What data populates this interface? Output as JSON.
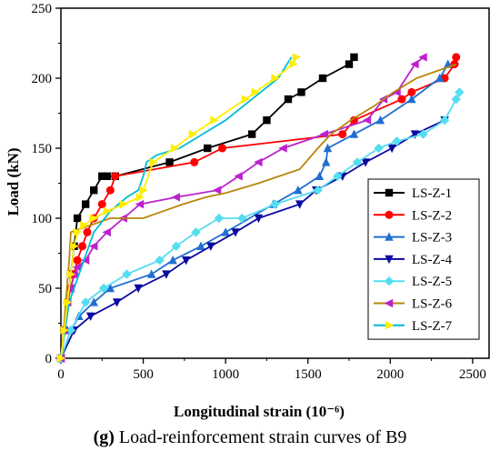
{
  "caption": {
    "prefix": "(g)",
    "text": "Load-reinforcement strain curves of B9"
  },
  "chart_data": {
    "type": "line",
    "xlabel": "Longitudinal strain (10⁻⁶)",
    "ylabel": "Load (kN)",
    "xlim": [
      0,
      2600
    ],
    "ylim": [
      0,
      250
    ],
    "xticks": [
      0,
      500,
      1000,
      1500,
      2000,
      2500
    ],
    "yticks": [
      0,
      50,
      100,
      150,
      200,
      250
    ],
    "grid": false,
    "legend_position": "right",
    "series": [
      {
        "name": "LS-Z-1",
        "color": "#000000",
        "marker": "square",
        "x": [
          0,
          20,
          40,
          60,
          80,
          100,
          150,
          200,
          250,
          280,
          330,
          660,
          890,
          1160,
          1250,
          1380,
          1460,
          1590,
          1750,
          1780
        ],
        "y": [
          0,
          20,
          40,
          60,
          80,
          100,
          110,
          120,
          130,
          130,
          130,
          140,
          150,
          160,
          170,
          185,
          190,
          200,
          210,
          215
        ]
      },
      {
        "name": "LS-Z-2",
        "color": "#ff0000",
        "marker": "circle",
        "x": [
          0,
          20,
          40,
          60,
          80,
          100,
          130,
          160,
          200,
          250,
          300,
          330,
          810,
          980,
          1710,
          1780,
          2070,
          2130,
          2330,
          2390,
          2400
        ],
        "y": [
          0,
          20,
          40,
          50,
          60,
          70,
          80,
          90,
          100,
          110,
          120,
          130,
          140,
          150,
          160,
          170,
          185,
          190,
          200,
          210,
          215
        ]
      },
      {
        "name": "LS-Z-3",
        "color": "#1f6fd0",
        "marker": "triangle-up",
        "x": [
          0,
          60,
          110,
          200,
          300,
          550,
          680,
          850,
          1000,
          1290,
          1440,
          1570,
          1610,
          1620,
          1780,
          1940,
          2130,
          2300,
          2350
        ],
        "y": [
          0,
          20,
          30,
          40,
          50,
          60,
          70,
          80,
          90,
          110,
          120,
          130,
          140,
          150,
          160,
          170,
          185,
          200,
          210
        ]
      },
      {
        "name": "LS-Z-4",
        "color": "#0a0aa0",
        "marker": "triangle-down",
        "x": [
          0,
          80,
          180,
          340,
          470,
          640,
          760,
          910,
          1060,
          1200,
          1450,
          1550,
          1710,
          1850,
          2010,
          2150,
          2330
        ],
        "y": [
          0,
          20,
          30,
          40,
          50,
          60,
          70,
          80,
          90,
          100,
          110,
          120,
          130,
          140,
          150,
          160,
          170
        ]
      },
      {
        "name": "LS-Z-5",
        "color": "#55ddf0",
        "marker": "diamond",
        "x": [
          0,
          60,
          150,
          260,
          400,
          600,
          700,
          820,
          960,
          1100,
          1300,
          1560,
          1680,
          1800,
          1930,
          2040,
          2200,
          2330,
          2400,
          2420
        ],
        "y": [
          0,
          20,
          40,
          50,
          60,
          70,
          80,
          90,
          100,
          100,
          110,
          120,
          130,
          140,
          150,
          155,
          160,
          170,
          185,
          190
        ]
      },
      {
        "name": "LS-Z-6",
        "color": "#bb22cc",
        "marker": "triangle-left",
        "x": [
          0,
          20,
          40,
          60,
          80,
          100,
          150,
          200,
          280,
          380,
          480,
          700,
          950,
          1080,
          1200,
          1350,
          1600,
          1860,
          1960,
          2040,
          2150,
          2200
        ],
        "y": [
          0,
          20,
          40,
          50,
          60,
          65,
          70,
          80,
          90,
          100,
          110,
          115,
          120,
          130,
          140,
          150,
          160,
          170,
          185,
          190,
          210,
          215
        ]
      },
      {
        "name": "LS-Z-7",
        "color": "#b8860b",
        "marker": "none",
        "x": [
          0,
          10,
          20,
          30,
          40,
          50,
          60,
          300,
          500,
          620,
          740,
          880,
          1000,
          1200,
          1450,
          1560,
          1640,
          1760,
          1900,
          2020,
          2160,
          2400
        ],
        "y": [
          0,
          10,
          25,
          40,
          55,
          70,
          90,
          100,
          100,
          105,
          110,
          115,
          118,
          125,
          135,
          150,
          160,
          170,
          180,
          190,
          200,
          210
        ]
      },
      {
        "name": "",
        "color": "#00bcd4",
        "marker": "none",
        "x": [
          0,
          50,
          110,
          200,
          300,
          400,
          470,
          500,
          520,
          580,
          720,
          860,
          1000,
          1160,
          1320,
          1400
        ],
        "y": [
          0,
          40,
          60,
          90,
          105,
          115,
          120,
          130,
          140,
          145,
          150,
          160,
          170,
          185,
          200,
          215
        ]
      },
      {
        "name": "",
        "color": "#ffee00",
        "marker": "triangle-right",
        "x": [
          0,
          20,
          40,
          60,
          80,
          100,
          140,
          200,
          280,
          380,
          480,
          500,
          560,
          690,
          800,
          930,
          1120,
          1180,
          1300,
          1410,
          1430
        ],
        "y": [
          0,
          20,
          40,
          60,
          80,
          90,
          95,
          100,
          105,
          110,
          115,
          120,
          140,
          150,
          160,
          170,
          185,
          190,
          200,
          210,
          215
        ]
      }
    ],
    "legend_entries": [
      {
        "name": "LS-Z-1",
        "color": "#000000",
        "marker": "square"
      },
      {
        "name": "LS-Z-2",
        "color": "#ff0000",
        "marker": "circle"
      },
      {
        "name": "LS-Z-3",
        "color": "#1f6fd0",
        "marker": "triangle-up"
      },
      {
        "name": "LS-Z-4",
        "color": "#0a0aa0",
        "marker": "triangle-down"
      },
      {
        "name": "LS-Z-5",
        "color": "#55ddf0",
        "marker": "diamond"
      },
      {
        "name": "LS-Z-6",
        "color": "#b8860b",
        "marker": "triangle-left",
        "marker_color": "#bb22cc"
      },
      {
        "name": "LS-Z-7",
        "color": "#00bcd4",
        "marker": "triangle-right",
        "marker_color": "#ffee00"
      }
    ]
  }
}
